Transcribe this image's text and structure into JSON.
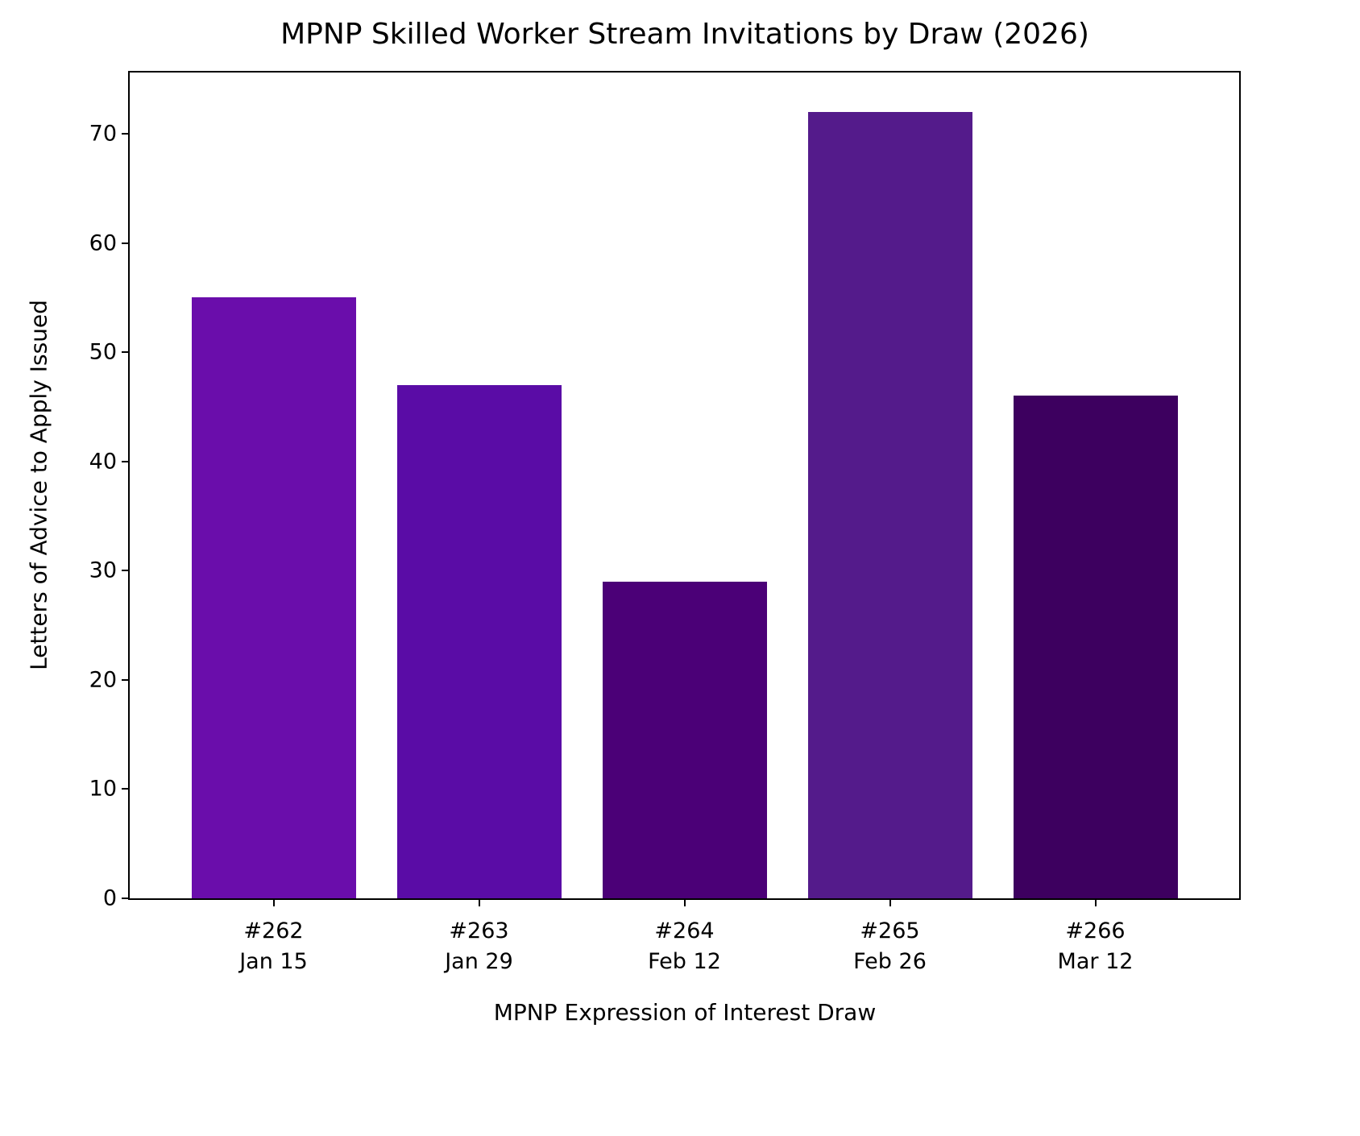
{
  "chart_data": {
    "type": "bar",
    "title": "MPNP Skilled Worker Stream Invitations by Draw (2026)",
    "xlabel": "MPNP Expression of Interest Draw",
    "ylabel": "Letters of Advice to Apply Issued",
    "categories": [
      "#262\nJan 15",
      "#263\nJan 29",
      "#264\nFeb 12",
      "#265\nFeb 26",
      "#266\nMar 12"
    ],
    "draw_numbers": [
      "#262",
      "#263",
      "#264",
      "#265",
      "#266"
    ],
    "draw_dates": [
      "Jan 15",
      "Jan 29",
      "Feb 12",
      "Feb 26",
      "Mar 12"
    ],
    "values": [
      55,
      47,
      29,
      72,
      46
    ],
    "colors": [
      "#6a0dab",
      "#5a0ca6",
      "#4b0077",
      "#541b8b",
      "#3d005f"
    ],
    "ylim": [
      0,
      75.6
    ],
    "yticks": [
      0,
      10,
      20,
      30,
      40,
      50,
      60,
      70
    ],
    "grid": false,
    "legend": null
  }
}
